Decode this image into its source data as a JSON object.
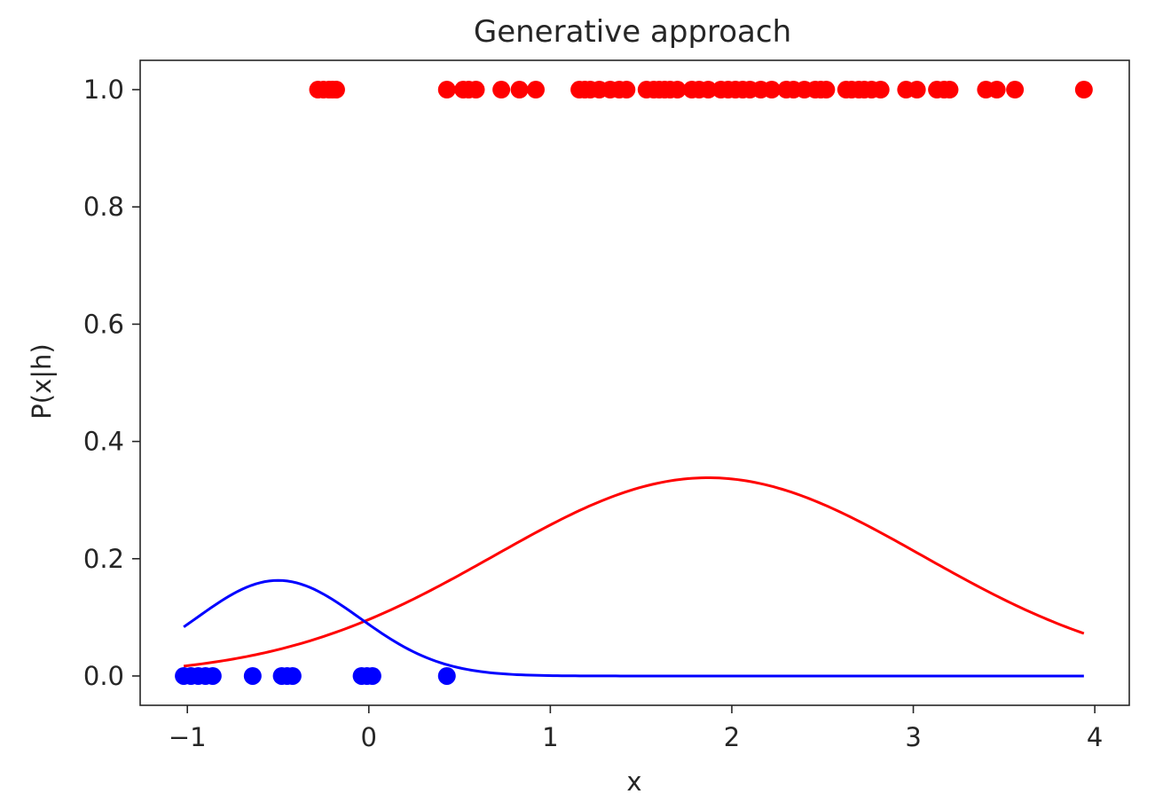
{
  "chart_data": {
    "type": "scatter",
    "title": "Generative approach",
    "xlabel": "x",
    "ylabel": "P(x|h)",
    "xlim": [
      -1.26,
      4.19
    ],
    "ylim": [
      -0.05,
      1.05
    ],
    "x_ticks": [
      -1,
      0,
      1,
      2,
      3,
      4
    ],
    "x_tick_labels": [
      "−1",
      "0",
      "1",
      "2",
      "3",
      "4"
    ],
    "y_ticks": [
      0.0,
      0.2,
      0.4,
      0.6,
      0.8,
      1.0
    ],
    "y_tick_labels": [
      "0.0",
      "0.2",
      "0.4",
      "0.6",
      "0.8",
      "1.0"
    ],
    "grid": false,
    "legend": "none",
    "colors": {
      "class_1": "#ff0000",
      "class_0": "#0000ff",
      "axis": "#262626",
      "background": "#ffffff"
    },
    "scatter_series": [
      {
        "color": "#ff0000",
        "y": 1.0,
        "x": [
          -0.28,
          -0.25,
          -0.22,
          -0.2,
          -0.18,
          0.43,
          0.52,
          0.55,
          0.59,
          0.73,
          0.83,
          0.92,
          1.16,
          1.19,
          1.22,
          1.27,
          1.33,
          1.38,
          1.42,
          1.53,
          1.57,
          1.6,
          1.63,
          1.66,
          1.7,
          1.78,
          1.82,
          1.87,
          1.94,
          1.98,
          2.02,
          2.06,
          2.1,
          2.16,
          2.22,
          2.3,
          2.34,
          2.4,
          2.46,
          2.49,
          2.52,
          2.63,
          2.66,
          2.7,
          2.73,
          2.77,
          2.82,
          2.96,
          3.02,
          3.13,
          3.17,
          3.2,
          3.4,
          3.46,
          3.56,
          3.94
        ]
      },
      {
        "color": "#0000ff",
        "y": 0.0,
        "x": [
          -1.02,
          -0.98,
          -0.94,
          -0.9,
          -0.86,
          -0.64,
          -0.48,
          -0.45,
          -0.42,
          -0.04,
          -0.01,
          0.02,
          0.43
        ]
      }
    ],
    "line_series": [
      {
        "color": "#ff0000",
        "x_range": [
          -1.02,
          3.94
        ],
        "gaussian": {
          "mean": 1.87,
          "std": 1.18
        }
      },
      {
        "color": "#0000ff",
        "x_range": [
          -1.02,
          3.94
        ],
        "gaussian": {
          "mean": -0.5,
          "std": 0.45
        },
        "scale": 0.163
      }
    ]
  }
}
